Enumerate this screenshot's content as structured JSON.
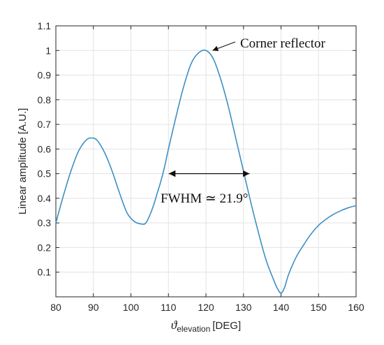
{
  "chart_data": {
    "type": "line",
    "xlabel_symbol": "ϑ",
    "xlabel_sub": "elevation",
    "xlabel_unit": "[DEG]",
    "ylabel": "Linear amplitude [A.U.]",
    "xlim": [
      80,
      160
    ],
    "ylim": [
      0,
      1.1
    ],
    "xticks": [
      "80",
      "90",
      "100",
      "110",
      "120",
      "130",
      "140",
      "150",
      "160"
    ],
    "yticks": [
      "0.1",
      "0.2",
      "0.3",
      "0.4",
      "0.5",
      "0.6",
      "0.7",
      "0.8",
      "0.9",
      "1",
      "1.1"
    ],
    "grid": true,
    "line_color": "#3d8fc4",
    "series": [
      {
        "x": [
          80,
          82,
          84,
          86,
          88,
          89.5,
          91,
          93,
          95,
          97,
          99,
          101,
          103,
          104,
          105,
          106,
          107,
          108,
          109,
          110,
          112,
          114,
          116,
          118,
          120,
          122,
          124,
          126,
          128,
          130,
          132,
          134,
          136,
          138,
          139,
          140,
          141,
          142,
          144,
          146,
          148,
          150,
          152,
          154,
          156,
          158,
          160
        ],
        "y": [
          0.3,
          0.41,
          0.51,
          0.59,
          0.635,
          0.645,
          0.635,
          0.585,
          0.51,
          0.42,
          0.34,
          0.305,
          0.295,
          0.3,
          0.33,
          0.37,
          0.42,
          0.47,
          0.53,
          0.6,
          0.73,
          0.85,
          0.945,
          0.99,
          1.0,
          0.965,
          0.88,
          0.77,
          0.64,
          0.51,
          0.38,
          0.26,
          0.15,
          0.07,
          0.035,
          0.015,
          0.04,
          0.09,
          0.16,
          0.21,
          0.255,
          0.29,
          0.315,
          0.335,
          0.35,
          0.362,
          0.37
        ]
      }
    ],
    "annotations": {
      "peak_label": "Corner reflector",
      "peak_point": [
        121,
        1.0
      ],
      "fwhm_label": "FWHM  ≃ 21.9°",
      "fwhm_range": [
        109.9,
        131.8
      ],
      "fwhm_level": 0.5
    }
  }
}
